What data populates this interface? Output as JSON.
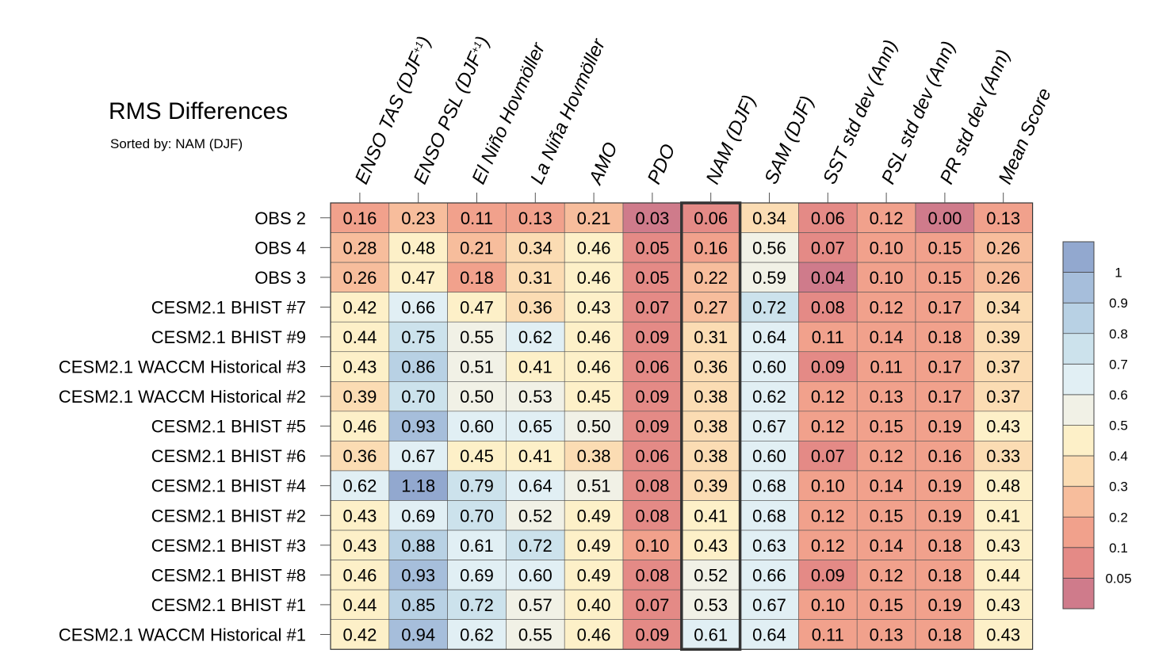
{
  "chart_data": {
    "type": "heatmap",
    "title": "RMS Differences",
    "subtitle": "Sorted by: NAM (DJF)",
    "highlight_column": "NAM (DJF)",
    "columns": [
      "ENSO TAS (DJF+1)",
      "ENSO PSL (DJF+1)",
      "El Niño Hovmöller",
      "La Niña Hovmöller",
      "AMO",
      "PDO",
      "NAM (DJF)",
      "SAM (DJF)",
      "SST std dev (Ann)",
      "PSL std dev (Ann)",
      "PR std dev (Ann)",
      "Mean Score"
    ],
    "rows": [
      {
        "label": "OBS 2",
        "values": [
          0.16,
          0.23,
          0.11,
          0.13,
          0.21,
          0.03,
          0.06,
          0.34,
          0.06,
          0.12,
          0.0,
          0.13
        ]
      },
      {
        "label": "OBS 4",
        "values": [
          0.28,
          0.48,
          0.21,
          0.34,
          0.46,
          0.05,
          0.16,
          0.56,
          0.07,
          0.1,
          0.15,
          0.26
        ]
      },
      {
        "label": "OBS 3",
        "values": [
          0.26,
          0.47,
          0.18,
          0.31,
          0.46,
          0.05,
          0.22,
          0.59,
          0.04,
          0.1,
          0.15,
          0.26
        ]
      },
      {
        "label": "CESM2.1 BHIST #7",
        "values": [
          0.42,
          0.66,
          0.47,
          0.36,
          0.43,
          0.07,
          0.27,
          0.72,
          0.08,
          0.12,
          0.17,
          0.34
        ]
      },
      {
        "label": "CESM2.1 BHIST #9",
        "values": [
          0.44,
          0.75,
          0.55,
          0.62,
          0.46,
          0.09,
          0.31,
          0.64,
          0.11,
          0.14,
          0.18,
          0.39
        ]
      },
      {
        "label": "CESM2.1 WACCM Historical #3",
        "values": [
          0.43,
          0.86,
          0.51,
          0.41,
          0.46,
          0.06,
          0.36,
          0.6,
          0.09,
          0.11,
          0.17,
          0.37
        ]
      },
      {
        "label": "CESM2.1 WACCM Historical #2",
        "values": [
          0.39,
          0.7,
          0.5,
          0.53,
          0.45,
          0.09,
          0.38,
          0.62,
          0.12,
          0.13,
          0.17,
          0.37
        ]
      },
      {
        "label": "CESM2.1 BHIST #5",
        "values": [
          0.46,
          0.93,
          0.6,
          0.65,
          0.5,
          0.09,
          0.38,
          0.67,
          0.12,
          0.15,
          0.19,
          0.43
        ]
      },
      {
        "label": "CESM2.1 BHIST #6",
        "values": [
          0.36,
          0.67,
          0.45,
          0.41,
          0.38,
          0.06,
          0.38,
          0.6,
          0.07,
          0.12,
          0.16,
          0.33
        ]
      },
      {
        "label": "CESM2.1 BHIST #4",
        "values": [
          0.62,
          1.18,
          0.79,
          0.64,
          0.51,
          0.08,
          0.39,
          0.68,
          0.1,
          0.14,
          0.19,
          0.48
        ]
      },
      {
        "label": "CESM2.1 BHIST #2",
        "values": [
          0.43,
          0.69,
          0.7,
          0.52,
          0.49,
          0.08,
          0.41,
          0.68,
          0.12,
          0.15,
          0.19,
          0.41
        ]
      },
      {
        "label": "CESM2.1 BHIST #3",
        "values": [
          0.43,
          0.88,
          0.61,
          0.72,
          0.49,
          0.1,
          0.43,
          0.63,
          0.12,
          0.14,
          0.18,
          0.43
        ]
      },
      {
        "label": "CESM2.1 BHIST #8",
        "values": [
          0.46,
          0.93,
          0.69,
          0.6,
          0.49,
          0.08,
          0.52,
          0.66,
          0.09,
          0.12,
          0.18,
          0.44
        ]
      },
      {
        "label": "CESM2.1 BHIST #1",
        "values": [
          0.44,
          0.85,
          0.72,
          0.57,
          0.4,
          0.07,
          0.53,
          0.67,
          0.1,
          0.15,
          0.19,
          0.43
        ]
      },
      {
        "label": "CESM2.1 WACCM Historical #1",
        "values": [
          0.42,
          0.94,
          0.62,
          0.55,
          0.46,
          0.09,
          0.61,
          0.64,
          0.11,
          0.13,
          0.18,
          0.43
        ]
      }
    ],
    "colorbar": {
      "levels": [
        0.05,
        0.1,
        0.2,
        0.3,
        0.4,
        0.5,
        0.6,
        0.7,
        0.8,
        0.9,
        1
      ],
      "tick_labels": [
        "0.05",
        "0.1",
        "0.2",
        "0.3",
        "0.4",
        "0.5",
        "0.6",
        "0.7",
        "0.8",
        "0.9",
        "1"
      ],
      "colors": [
        "#cf7b8b",
        "#e48a86",
        "#f1a18c",
        "#f7bd9c",
        "#fbdcb3",
        "#fdf0c8",
        "#f1f1e6",
        "#e1eff4",
        "#cce2ec",
        "#b8d1e4",
        "#a6bedb",
        "#92a8cf"
      ]
    }
  }
}
